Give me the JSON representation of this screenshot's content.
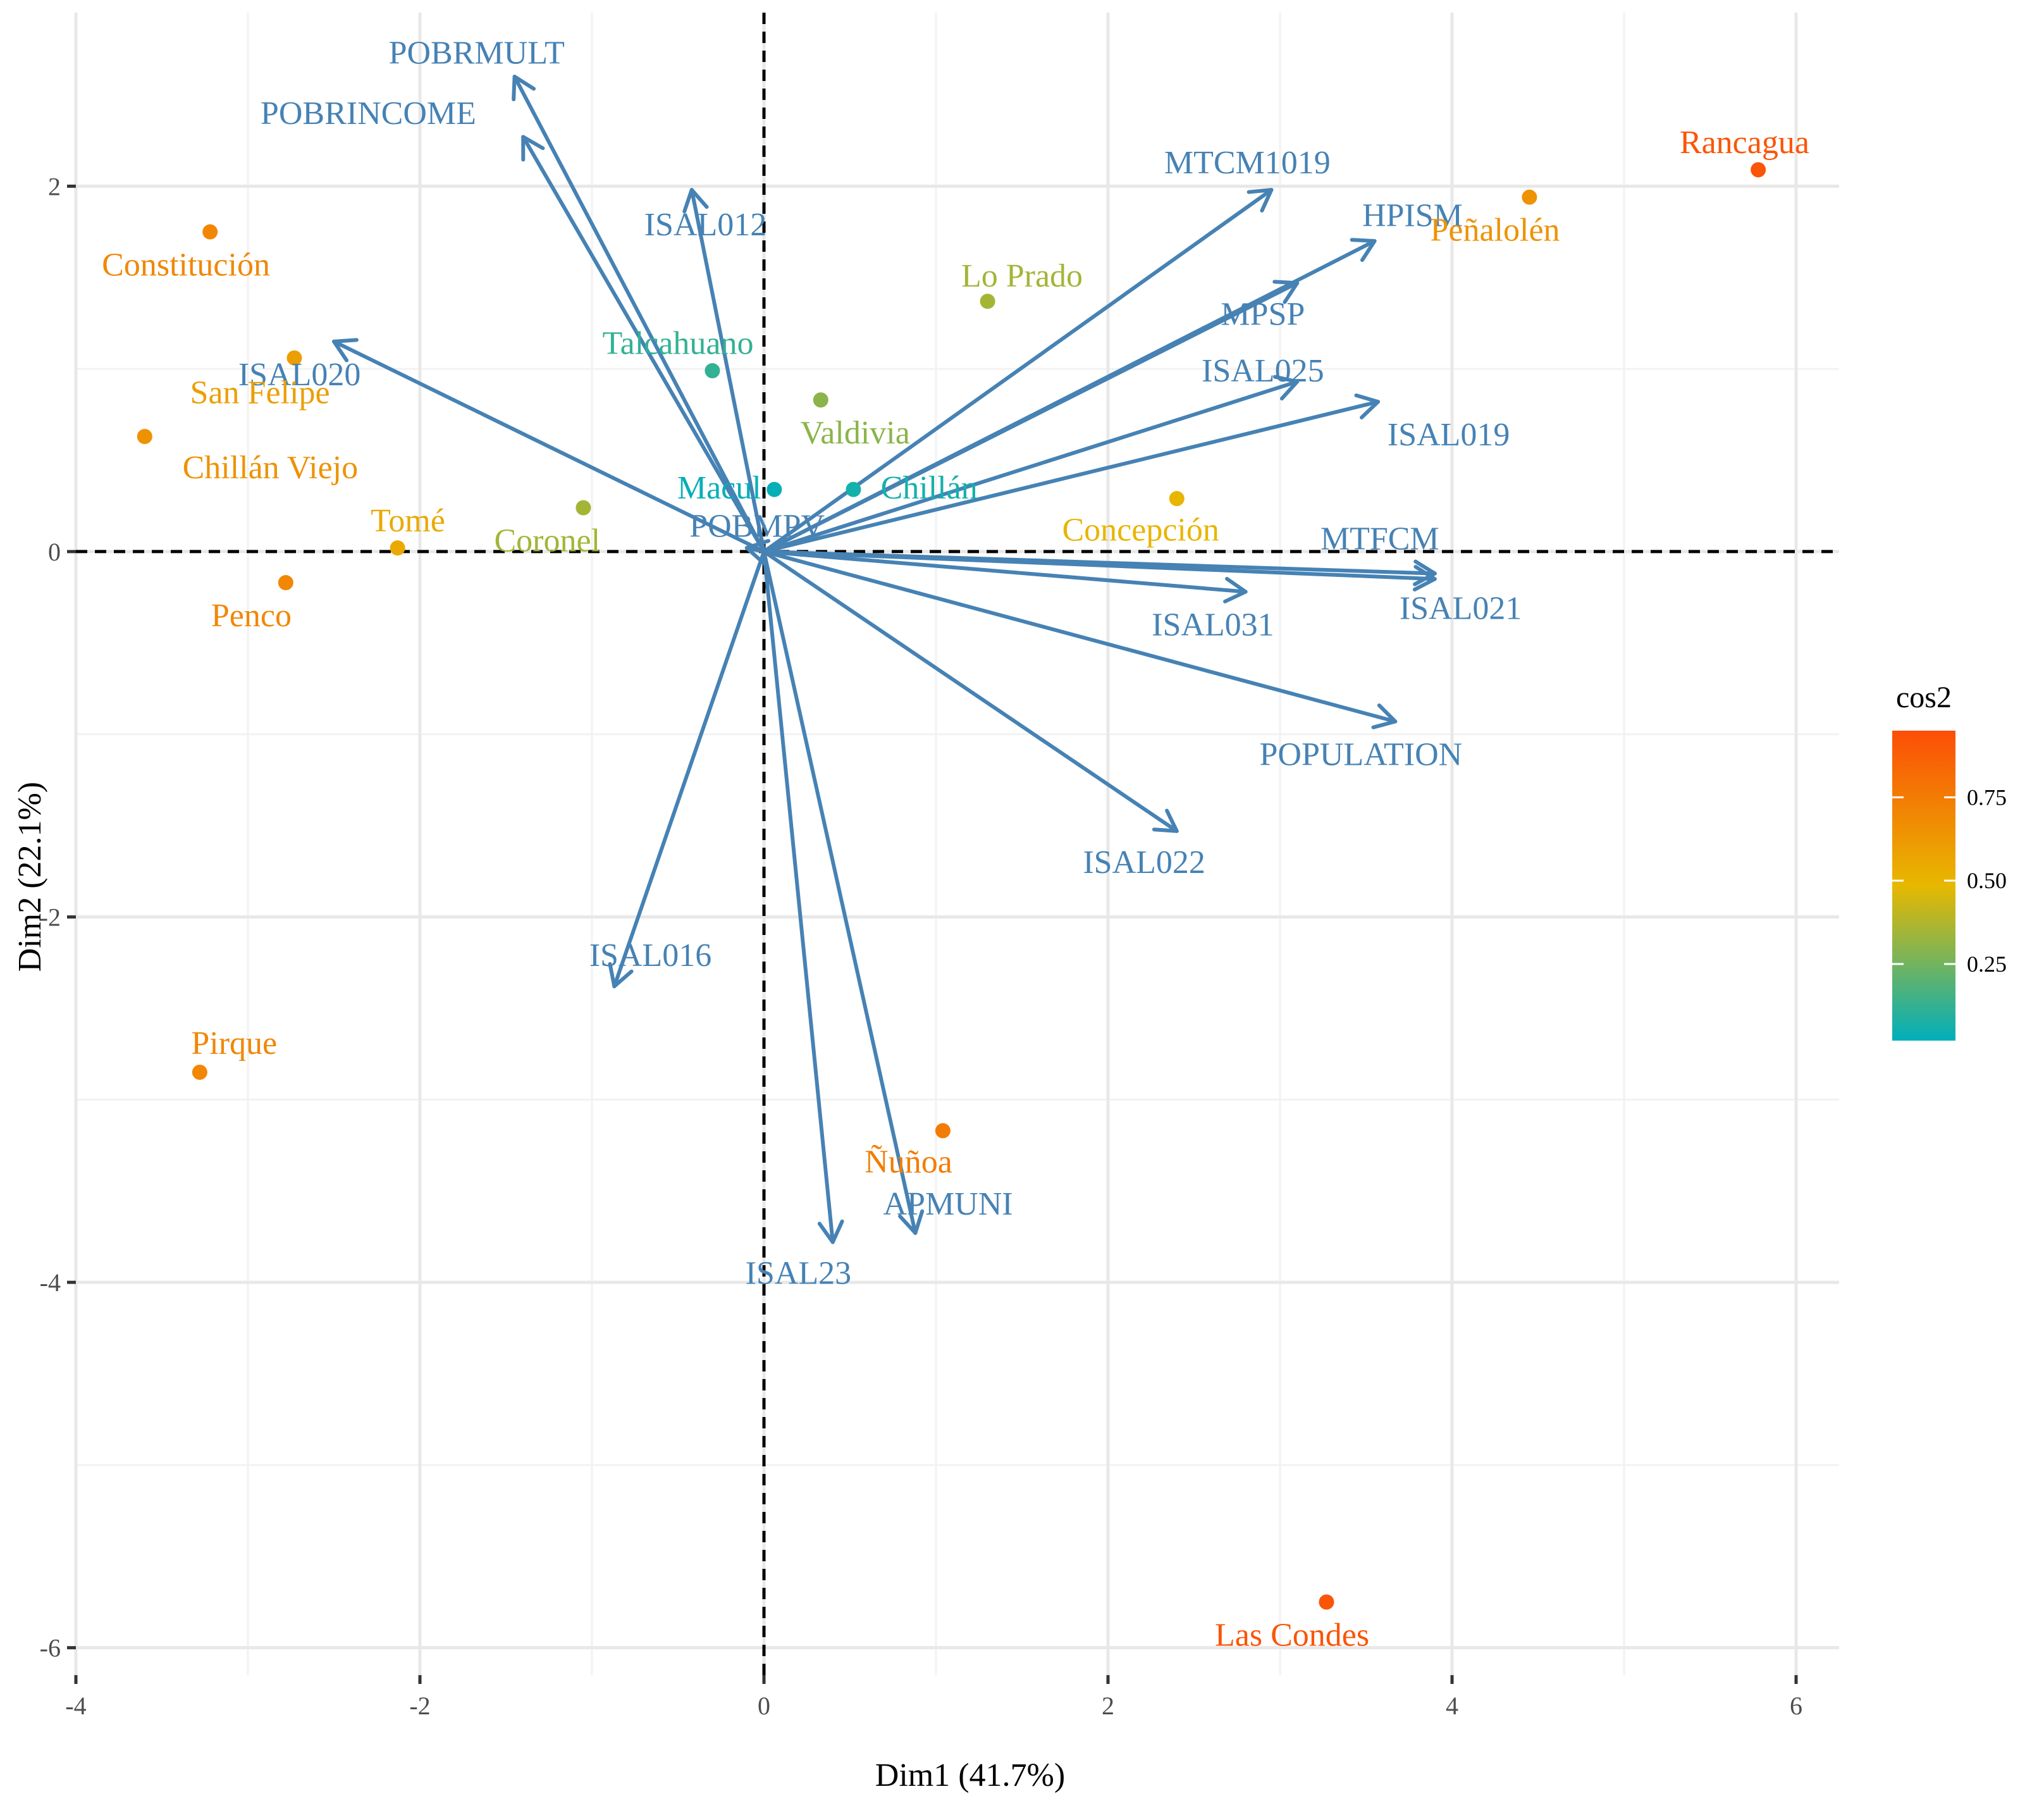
{
  "chart_data": {
    "type": "biplot",
    "title": "",
    "xlabel": "Dim1 (41.7%)",
    "ylabel": "Dim2 (22.1%)",
    "xlim": [
      -4,
      6.25
    ],
    "ylim": [
      -6.15,
      2.95
    ],
    "xticks": [
      -4,
      -2,
      0,
      2,
      4,
      6
    ],
    "yticks": [
      -6,
      -4,
      -2,
      0,
      2
    ],
    "grid": true,
    "reference_lines": {
      "x": 0,
      "y": 0,
      "style": "dashed"
    },
    "variables_color": "#4682B4",
    "variables": [
      {
        "name": "POBRMULT",
        "x": -1.45,
        "y": 2.6,
        "lx": -1.67,
        "ly": 2.73
      },
      {
        "name": "POBRINCOME",
        "x": -1.4,
        "y": 2.27,
        "lx": -2.3,
        "ly": 2.4
      },
      {
        "name": "ISAL012",
        "x": -0.42,
        "y": 1.98,
        "lx": -0.34,
        "ly": 1.79
      },
      {
        "name": "ISAL020",
        "x": -2.5,
        "y": 1.15,
        "lx": -2.7,
        "ly": 0.97
      },
      {
        "name": "MTCM1019",
        "x": 2.95,
        "y": 1.98,
        "lx": 2.81,
        "ly": 2.13
      },
      {
        "name": "HPISM",
        "x": 3.55,
        "y": 1.7,
        "lx": 3.77,
        "ly": 1.84
      },
      {
        "name": "MPSP",
        "x": 3.1,
        "y": 1.47,
        "lx": 2.9,
        "ly": 1.3
      },
      {
        "name": "ISAL025",
        "x": 3.1,
        "y": 0.93,
        "lx": 2.9,
        "ly": 0.99
      },
      {
        "name": "ISAL019",
        "x": 3.57,
        "y": 0.82,
        "lx": 3.98,
        "ly": 0.64
      },
      {
        "name": "POBMPV",
        "x": -0.1,
        "y": 0.02,
        "lx": -0.04,
        "ly": 0.14
      },
      {
        "name": "MTFCM",
        "x": 3.9,
        "y": -0.15,
        "lx": 3.58,
        "ly": 0.07
      },
      {
        "name": "ISAL021",
        "x": 3.9,
        "y": -0.12,
        "lx": 4.05,
        "ly": -0.31
      },
      {
        "name": "ISAL031",
        "x": 2.8,
        "y": -0.22,
        "lx": 2.61,
        "ly": -0.4
      },
      {
        "name": "POPULATION",
        "x": 3.67,
        "y": -0.93,
        "lx": 3.47,
        "ly": -1.11
      },
      {
        "name": "ISAL022",
        "x": 2.4,
        "y": -1.53,
        "lx": 2.21,
        "ly": -1.7
      },
      {
        "name": "ISAL016",
        "x": -0.87,
        "y": -2.38,
        "lx": -0.66,
        "ly": -2.21
      },
      {
        "name": "ISAL23",
        "x": 0.4,
        "y": -3.78,
        "lx": 0.2,
        "ly": -3.95
      },
      {
        "name": "APMUNI",
        "x": 0.88,
        "y": -3.73,
        "lx": 1.07,
        "ly": -3.57
      }
    ],
    "individuals_color_scale": {
      "name": "cos2",
      "stops": [
        "#00AFBB",
        "#E7B800",
        "#FC4E07"
      ],
      "breaks": [
        0.25,
        0.5,
        0.75
      ],
      "break_labels": [
        "0.25",
        "0.50",
        "0.75"
      ],
      "min": 0.02,
      "max": 0.95
    },
    "individuals": [
      {
        "name": "Rancagua",
        "x": 5.78,
        "y": 2.09,
        "cos2": 0.92,
        "lx": 5.7,
        "ly": 2.24
      },
      {
        "name": "Peñalolén",
        "x": 4.45,
        "y": 1.94,
        "cos2": 0.65,
        "lx": 4.25,
        "ly": 1.76
      },
      {
        "name": "Lo Prado",
        "x": 1.3,
        "y": 1.37,
        "cos2": 0.35,
        "lx": 1.5,
        "ly": 1.51
      },
      {
        "name": "Constitución",
        "x": -3.22,
        "y": 1.75,
        "cos2": 0.7,
        "lx": -3.36,
        "ly": 1.57
      },
      {
        "name": "Talcahuano",
        "x": -0.3,
        "y": 0.99,
        "cos2": 0.12,
        "lx": -0.5,
        "ly": 1.14
      },
      {
        "name": "San Felipe",
        "x": -2.73,
        "y": 1.06,
        "cos2": 0.6,
        "lx": -2.93,
        "ly": 0.87
      },
      {
        "name": "Valdivia",
        "x": 0.33,
        "y": 0.83,
        "cos2": 0.3,
        "lx": 0.53,
        "ly": 0.65
      },
      {
        "name": "Chillán Viejo",
        "x": -3.6,
        "y": 0.63,
        "cos2": 0.65,
        "lx": -2.87,
        "ly": 0.46
      },
      {
        "name": "Macul",
        "x": 0.06,
        "y": 0.34,
        "cos2": 0.03,
        "lx": -0.26,
        "ly": 0.35
      },
      {
        "name": "Chillán",
        "x": 0.52,
        "y": 0.34,
        "cos2": 0.06,
        "lx": 0.96,
        "ly": 0.35
      },
      {
        "name": "Concepción",
        "x": 2.4,
        "y": 0.29,
        "cos2": 0.5,
        "lx": 2.19,
        "ly": 0.12
      },
      {
        "name": "Coronel",
        "x": -1.05,
        "y": 0.24,
        "cos2": 0.35,
        "lx": -1.26,
        "ly": 0.06
      },
      {
        "name": "Tomé",
        "x": -2.13,
        "y": 0.02,
        "cos2": 0.55,
        "lx": -2.07,
        "ly": 0.17
      },
      {
        "name": "Penco",
        "x": -2.78,
        "y": -0.17,
        "cos2": 0.7,
        "lx": -2.98,
        "ly": -0.35
      },
      {
        "name": "Pirque",
        "x": -3.28,
        "y": -2.85,
        "cos2": 0.7,
        "lx": -3.08,
        "ly": -2.69
      },
      {
        "name": "Ñuñoa",
        "x": 1.04,
        "y": -3.17,
        "cos2": 0.75,
        "lx": 0.84,
        "ly": -3.34
      },
      {
        "name": "Las Condes",
        "x": 3.27,
        "y": -5.75,
        "cos2": 0.92,
        "lx": 3.07,
        "ly": -5.93
      }
    ]
  }
}
